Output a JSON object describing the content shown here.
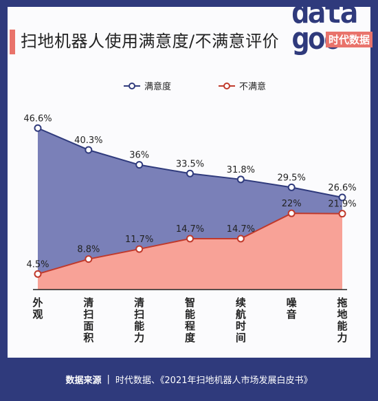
{
  "header": {
    "title": "扫地机器人使用满意度/不满意评价",
    "logo_main": "data\ngoo",
    "logo_sub": "时代数据"
  },
  "footer": {
    "source_label": "数据来源",
    "separator": "|",
    "source_text": "时代数据、《2021年扫地机器人市场发展白皮书》"
  },
  "colors": {
    "satisfied_fill": "#7a80b8",
    "satisfied_line": "#2f3a7c",
    "unsatisfied_fill": "#f8a297",
    "unsatisfied_line": "#c0392b",
    "brand": "#2f3a7c",
    "accent": "#e9736b"
  },
  "chart_data": {
    "type": "area",
    "categories": [
      "外观",
      "清扫面积",
      "清扫能力",
      "智能程度",
      "续航时间",
      "噪音",
      "拖地能力"
    ],
    "series": [
      {
        "name": "满意度",
        "values": [
          46.6,
          40.3,
          36,
          33.5,
          31.8,
          29.5,
          26.6
        ],
        "labels": [
          "46.6%",
          "40.3%",
          "36%",
          "33.5%",
          "31.8%",
          "29.5%",
          "26.6%"
        ]
      },
      {
        "name": "不满意",
        "values": [
          4.5,
          8.8,
          11.7,
          14.7,
          14.7,
          22,
          21.9
        ],
        "labels": [
          "4.5%",
          "8.8%",
          "11.7%",
          "14.7%",
          "14.7%",
          "22%",
          "21.9%"
        ]
      }
    ],
    "ylim": [
      0,
      50
    ],
    "legend": "top-center",
    "grid": false
  }
}
